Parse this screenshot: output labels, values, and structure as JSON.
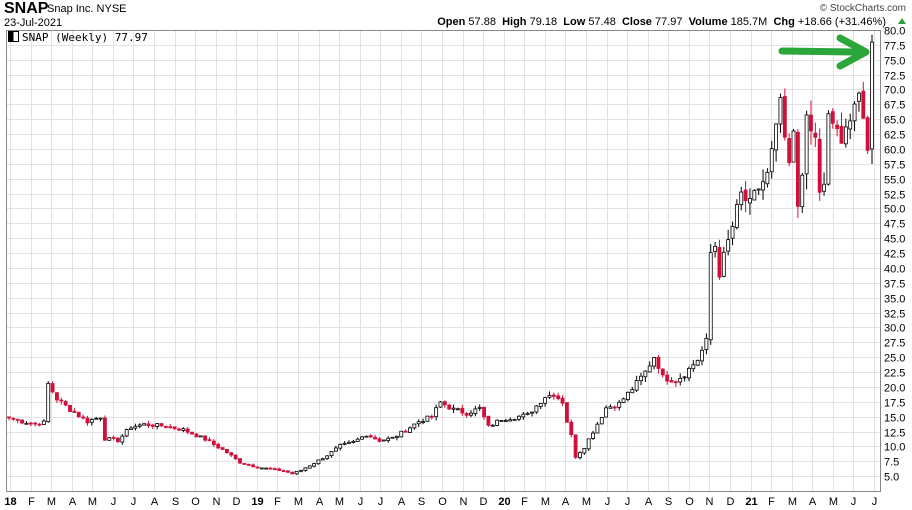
{
  "header": {
    "symbol": "SNAP",
    "company": "Snap Inc.",
    "exchange": "NYSE",
    "date": "23-Jul-2021",
    "brand": "© StockCharts.com",
    "open_label": "Open",
    "open": "57.88",
    "high_label": "High",
    "high": "79.18",
    "low_label": "Low",
    "low": "57.48",
    "close_label": "Close",
    "close": "77.97",
    "volume_label": "Volume",
    "volume": "185.7M",
    "chg_label": "Chg",
    "chg": "+18.66 (+31.46%)"
  },
  "legend": "SNAP (Weekly) 77.97",
  "colors": {
    "up": "#ffffff",
    "down": "#d0103a",
    "grid": "#e2e2e2",
    "arrow": "#2aa63a"
  },
  "chart_data": {
    "type": "candlestick",
    "title": "SNAP (Weekly) 77.97",
    "ylabel": "",
    "ylim": [
      2.5,
      80
    ],
    "y_ticks": [
      5,
      7.5,
      10,
      12.5,
      15,
      17.5,
      20,
      22.5,
      25,
      27.5,
      30,
      32.5,
      35,
      37.5,
      40,
      42.5,
      45,
      47.5,
      50,
      52.5,
      55,
      57.5,
      60,
      62.5,
      65,
      67.5,
      70,
      72.5,
      75,
      77.5,
      80
    ],
    "month_labels": [
      "18",
      "F",
      "M",
      "A",
      "M",
      "J",
      "J",
      "A",
      "S",
      "O",
      "N",
      "D",
      "19",
      "F",
      "M",
      "A",
      "M",
      "J",
      "J",
      "A",
      "S",
      "O",
      "N",
      "D",
      "20",
      "F",
      "M",
      "A",
      "M",
      "J",
      "J",
      "A",
      "S",
      "O",
      "N",
      "D",
      "21",
      "F",
      "M",
      "A",
      "M",
      "J",
      "J"
    ],
    "anchors": [
      [
        0,
        14.8
      ],
      [
        3,
        14.2
      ],
      [
        6,
        13.8
      ],
      [
        8,
        14.0
      ],
      [
        9,
        20.5
      ],
      [
        11,
        18.0
      ],
      [
        14,
        16.2
      ],
      [
        18,
        14.2
      ],
      [
        21,
        15.0
      ],
      [
        22,
        11.3
      ],
      [
        25,
        11.0
      ],
      [
        28,
        13.3
      ],
      [
        31,
        13.7
      ],
      [
        36,
        13.4
      ],
      [
        40,
        12.8
      ],
      [
        45,
        11.2
      ],
      [
        50,
        9.0
      ],
      [
        53,
        7.3
      ],
      [
        57,
        6.5
      ],
      [
        60,
        6.2
      ],
      [
        63,
        5.9
      ],
      [
        65,
        5.4
      ],
      [
        67,
        6.0
      ],
      [
        70,
        7.2
      ],
      [
        73,
        8.5
      ],
      [
        76,
        10.1
      ],
      [
        79,
        10.7
      ],
      [
        82,
        12.0
      ],
      [
        85,
        11.0
      ],
      [
        88,
        11.4
      ],
      [
        91,
        12.7
      ],
      [
        94,
        14.2
      ],
      [
        97,
        15.0
      ],
      [
        99,
        17.4
      ],
      [
        102,
        16.2
      ],
      [
        105,
        15.6
      ],
      [
        108,
        16.4
      ],
      [
        110,
        13.3
      ],
      [
        113,
        14.6
      ],
      [
        116,
        14.9
      ],
      [
        119,
        15.3
      ],
      [
        121,
        16.8
      ],
      [
        123,
        18.4
      ],
      [
        125,
        18.8
      ],
      [
        127,
        17.5
      ],
      [
        128,
        14.2
      ],
      [
        129,
        11.8
      ],
      [
        130,
        8.3
      ],
      [
        132,
        9.9
      ],
      [
        135,
        13.8
      ],
      [
        137,
        16.5
      ],
      [
        140,
        17.2
      ],
      [
        143,
        19.7
      ],
      [
        146,
        22.5
      ],
      [
        148,
        25.1
      ],
      [
        149,
        23.6
      ],
      [
        150,
        21.6
      ],
      [
        153,
        21.1
      ],
      [
        155,
        22.2
      ],
      [
        158,
        24.6
      ],
      [
        160,
        27.6
      ],
      [
        161,
        42.5
      ],
      [
        162,
        43.8
      ],
      [
        163,
        39.2
      ],
      [
        164,
        41.8
      ],
      [
        166,
        47.0
      ],
      [
        168,
        52.3
      ],
      [
        170,
        50.5
      ],
      [
        172,
        53.5
      ],
      [
        174,
        55.5
      ],
      [
        176,
        62.9
      ],
      [
        177,
        68.5
      ],
      [
        178,
        60.5
      ],
      [
        179,
        57.3
      ],
      [
        180,
        62.0
      ],
      [
        181,
        50.5
      ],
      [
        182,
        56.8
      ],
      [
        183,
        64.2
      ],
      [
        185,
        61.5
      ],
      [
        186,
        53.0
      ],
      [
        187,
        53.4
      ],
      [
        188,
        65.0
      ],
      [
        190,
        63.6
      ],
      [
        191,
        59.8
      ],
      [
        193,
        66.2
      ],
      [
        194,
        68.0
      ],
      [
        195,
        69.5
      ],
      [
        196,
        63.6
      ],
      [
        197,
        59.3
      ],
      [
        198,
        77.97
      ]
    ],
    "annotation": "green arrow pointing to latest weekly candle"
  }
}
